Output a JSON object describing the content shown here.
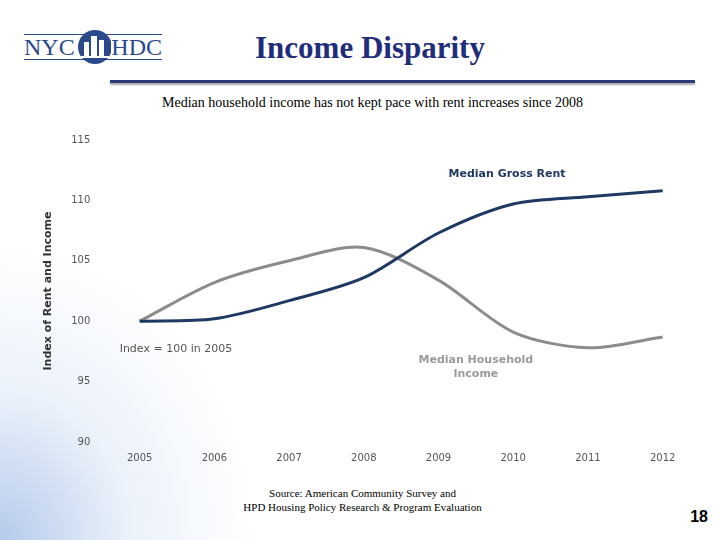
{
  "header": {
    "logo_left": "NYC",
    "logo_right": "HDC",
    "title": "Income Disparity"
  },
  "subtitle": "Median household income has not kept pace with rent increases since 2008",
  "chart_data": {
    "type": "line",
    "y_label": "Index of Rent and Income",
    "categories": [
      "2005",
      "2006",
      "2007",
      "2008",
      "2009",
      "2010",
      "2011",
      "2012"
    ],
    "series": [
      {
        "name": "Median Gross Rent",
        "color": "#1f3864",
        "values": [
          100,
          100.2,
          101.7,
          103.6,
          107.3,
          109.7,
          110.3,
          110.8
        ]
      },
      {
        "name": "Median Household Income",
        "color": "#8c8c8c",
        "values": [
          100,
          103.2,
          105,
          106.1,
          103.4,
          99.1,
          97.8,
          98.7
        ]
      }
    ],
    "annotations": [
      "Index = 100 in 2005"
    ],
    "ylim": [
      90,
      115
    ],
    "yticks": [
      90,
      95,
      100,
      105,
      110,
      115
    ],
    "grid": false
  },
  "footer": {
    "source": [
      "Source: American Community Survey and",
      "HPD Housing Policy Research & Program Evaluation"
    ],
    "page_number": 18
  }
}
